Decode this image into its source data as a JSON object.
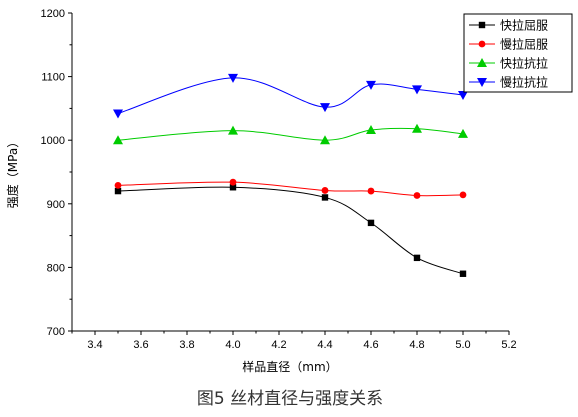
{
  "chart_data": {
    "type": "line",
    "title": "",
    "caption": "图5 丝材直径与强度关系",
    "xlabel": "样品直径（mm）",
    "ylabel": "强度（MPa）",
    "xlim": [
      3.3,
      5.2
    ],
    "ylim": [
      700,
      1200
    ],
    "xticks": [
      "3.4",
      "3.6",
      "3.8",
      "4.0",
      "4.2",
      "4.4",
      "4.6",
      "4.8",
      "5.0",
      "5.2"
    ],
    "yticks": [
      "700",
      "800",
      "900",
      "1000",
      "1100",
      "1200"
    ],
    "legend_position": "top-right",
    "grid": false,
    "series": [
      {
        "name": "快拉屈服",
        "color": "#000000",
        "marker": "square",
        "x": [
          3.5,
          4.0,
          4.4,
          4.6,
          4.8,
          5.0
        ],
        "y": [
          920,
          926,
          910,
          870,
          815,
          790
        ]
      },
      {
        "name": "慢拉屈服",
        "color": "#ff0000",
        "marker": "circle",
        "x": [
          3.5,
          4.0,
          4.4,
          4.6,
          4.8,
          5.0
        ],
        "y": [
          929,
          934,
          921,
          920,
          913,
          914
        ]
      },
      {
        "name": "快拉抗拉",
        "color": "#00cc00",
        "marker": "triangle-up",
        "x": [
          3.5,
          4.0,
          4.4,
          4.6,
          4.8,
          5.0
        ],
        "y": [
          1000,
          1015,
          1000,
          1016,
          1018,
          1010
        ]
      },
      {
        "name": "慢拉抗拉",
        "color": "#0000ff",
        "marker": "triangle-down",
        "x": [
          3.5,
          4.0,
          4.4,
          4.6,
          4.8,
          5.0
        ],
        "y": [
          1042,
          1098,
          1052,
          1087,
          1080,
          1071
        ]
      }
    ]
  }
}
